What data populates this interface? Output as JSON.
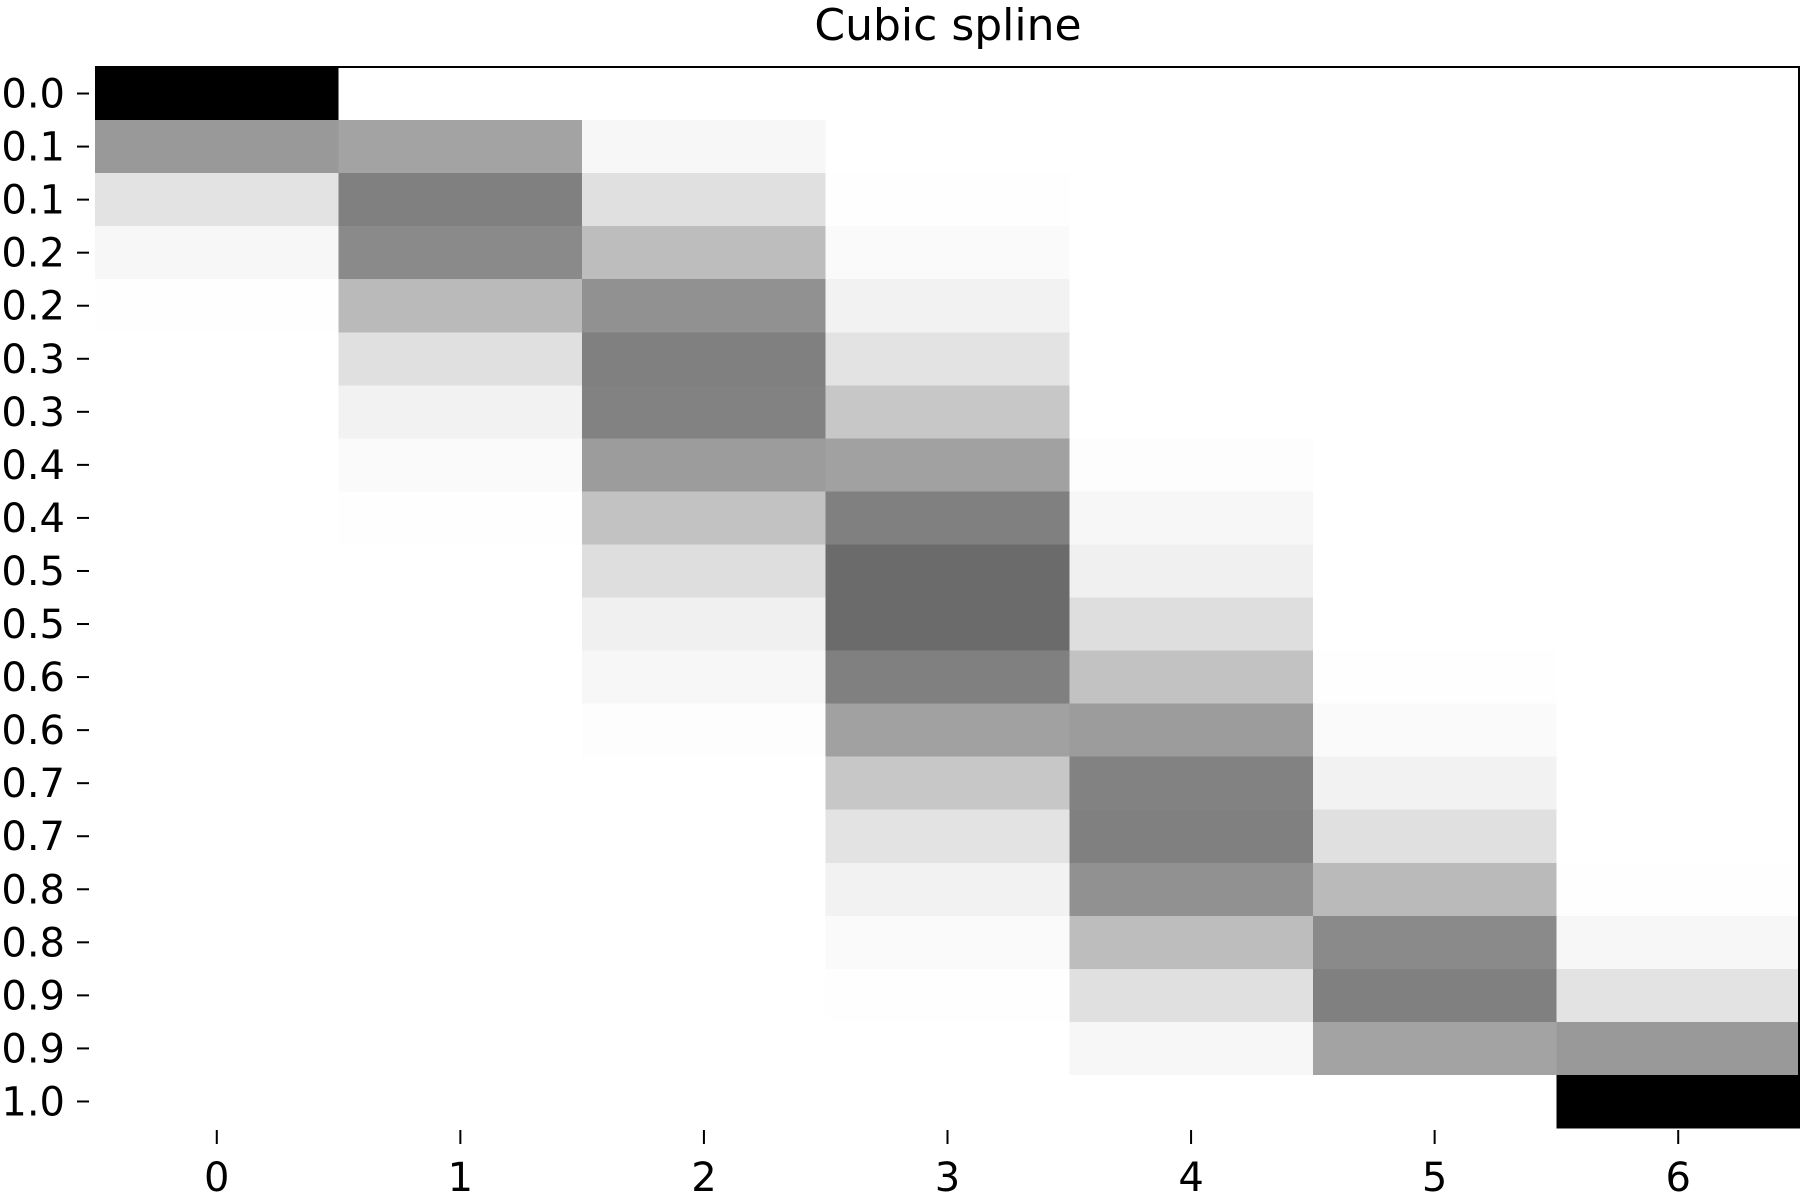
{
  "chart_data": {
    "type": "heatmap",
    "title": "Cubic spline",
    "xlabel": "",
    "ylabel": "",
    "colormap": "gray_r",
    "colors": {
      "low": "#ffffff",
      "high": "#000000",
      "axis": "#000000"
    },
    "x_ticks": [
      "0",
      "1",
      "2",
      "3",
      "4",
      "5",
      "6"
    ],
    "y_ticks": [
      "0.0",
      "0.1",
      "0.1",
      "0.2",
      "0.2",
      "0.3",
      "0.3",
      "0.4",
      "0.4",
      "0.5",
      "0.5",
      "0.6",
      "0.6",
      "0.7",
      "0.7",
      "0.8",
      "0.8",
      "0.9",
      "0.9",
      "1.0"
    ],
    "vmin": 0,
    "vmax": 1,
    "grid": false,
    "values": [
      [
        1.0,
        0.0,
        0.0,
        0.0,
        0.0,
        0.0,
        0.0
      ],
      [
        0.4,
        0.36,
        0.03,
        0.0,
        0.0,
        0.0,
        0.0
      ],
      [
        0.11,
        0.5,
        0.12,
        0.005,
        0.0,
        0.0,
        0.0
      ],
      [
        0.03,
        0.46,
        0.26,
        0.02,
        0.0,
        0.0,
        0.0
      ],
      [
        0.005,
        0.27,
        0.43,
        0.05,
        0.0,
        0.0,
        0.0
      ],
      [
        0.0,
        0.12,
        0.5,
        0.11,
        0.0,
        0.0,
        0.0
      ],
      [
        0.0,
        0.05,
        0.49,
        0.22,
        0.0,
        0.0,
        0.0
      ],
      [
        0.0,
        0.02,
        0.39,
        0.37,
        0.006,
        0.0,
        0.0
      ],
      [
        0.0,
        0.004,
        0.24,
        0.5,
        0.03,
        0.0,
        0.0
      ],
      [
        0.0,
        0.0,
        0.13,
        0.58,
        0.06,
        0.0,
        0.0
      ],
      [
        0.0,
        0.0,
        0.06,
        0.58,
        0.13,
        0.0,
        0.0
      ],
      [
        0.0,
        0.0,
        0.03,
        0.5,
        0.24,
        0.004,
        0.0
      ],
      [
        0.0,
        0.0,
        0.006,
        0.37,
        0.39,
        0.02,
        0.0
      ],
      [
        0.0,
        0.0,
        0.0,
        0.22,
        0.49,
        0.05,
        0.0
      ],
      [
        0.0,
        0.0,
        0.0,
        0.11,
        0.5,
        0.12,
        0.0
      ],
      [
        0.0,
        0.0,
        0.0,
        0.05,
        0.43,
        0.27,
        0.005
      ],
      [
        0.0,
        0.0,
        0.0,
        0.02,
        0.26,
        0.46,
        0.03
      ],
      [
        0.0,
        0.0,
        0.0,
        0.005,
        0.12,
        0.5,
        0.11
      ],
      [
        0.0,
        0.0,
        0.0,
        0.0,
        0.03,
        0.36,
        0.4
      ],
      [
        0.0,
        0.0,
        0.0,
        0.0,
        0.0,
        0.0,
        1.0
      ]
    ]
  }
}
